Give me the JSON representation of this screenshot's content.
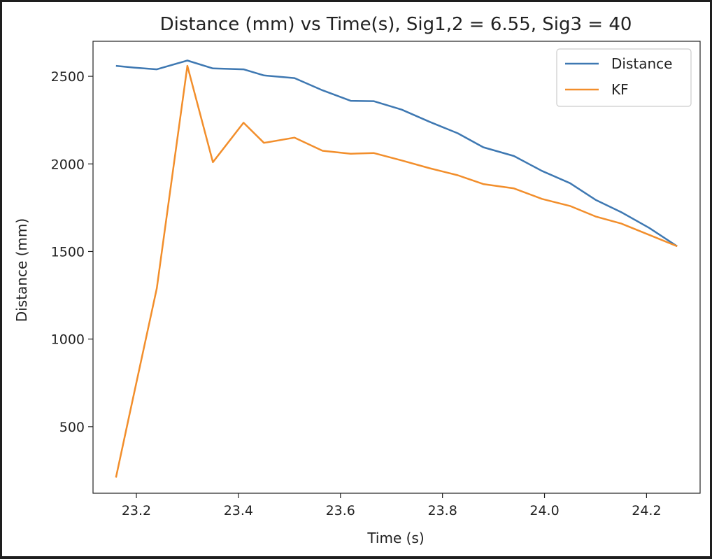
{
  "chart_data": {
    "type": "line",
    "title": "Distance (mm) vs Time(s), Sig1,2 = 6.55, Sig3 = 40",
    "xlabel": "Time (s)",
    "ylabel": "Distance (mm)",
    "xlim": [
      23.115,
      24.305
    ],
    "ylim": [
      120,
      2700
    ],
    "xticks": [
      23.2,
      23.4,
      23.6,
      23.8,
      24.0,
      24.2
    ],
    "xtick_labels": [
      "23.2",
      "23.4",
      "23.6",
      "23.8",
      "24.0",
      "24.2"
    ],
    "yticks": [
      500,
      1000,
      1500,
      2000,
      2500
    ],
    "ytick_labels": [
      "500",
      "1000",
      "1500",
      "2000",
      "2500"
    ],
    "grid": false,
    "legend_position": "top-right",
    "series": [
      {
        "name": "Distance",
        "color": "#3e78b2",
        "x": [
          23.16,
          23.195,
          23.24,
          23.3,
          23.35,
          23.41,
          23.45,
          23.51,
          23.565,
          23.62,
          23.665,
          23.72,
          23.775,
          23.83,
          23.88,
          23.94,
          23.995,
          24.05,
          24.1,
          24.15,
          24.205,
          24.26
        ],
        "y": [
          2560,
          2550,
          2540,
          2590,
          2545,
          2540,
          2505,
          2490,
          2420,
          2360,
          2358,
          2310,
          2240,
          2175,
          2095,
          2045,
          1960,
          1890,
          1795,
          1725,
          1635,
          1530
        ]
      },
      {
        "name": "KF",
        "color": "#f28e2b",
        "x": [
          23.16,
          23.185,
          23.24,
          23.3,
          23.35,
          23.41,
          23.45,
          23.51,
          23.565,
          23.62,
          23.665,
          23.72,
          23.775,
          23.83,
          23.88,
          23.94,
          23.995,
          24.05,
          24.1,
          24.15,
          24.205,
          24.26
        ],
        "y": [
          210,
          550,
          1290,
          2560,
          2010,
          2235,
          2120,
          2150,
          2075,
          2058,
          2062,
          2020,
          1975,
          1935,
          1885,
          1860,
          1800,
          1760,
          1700,
          1660,
          1595,
          1530
        ]
      }
    ]
  }
}
